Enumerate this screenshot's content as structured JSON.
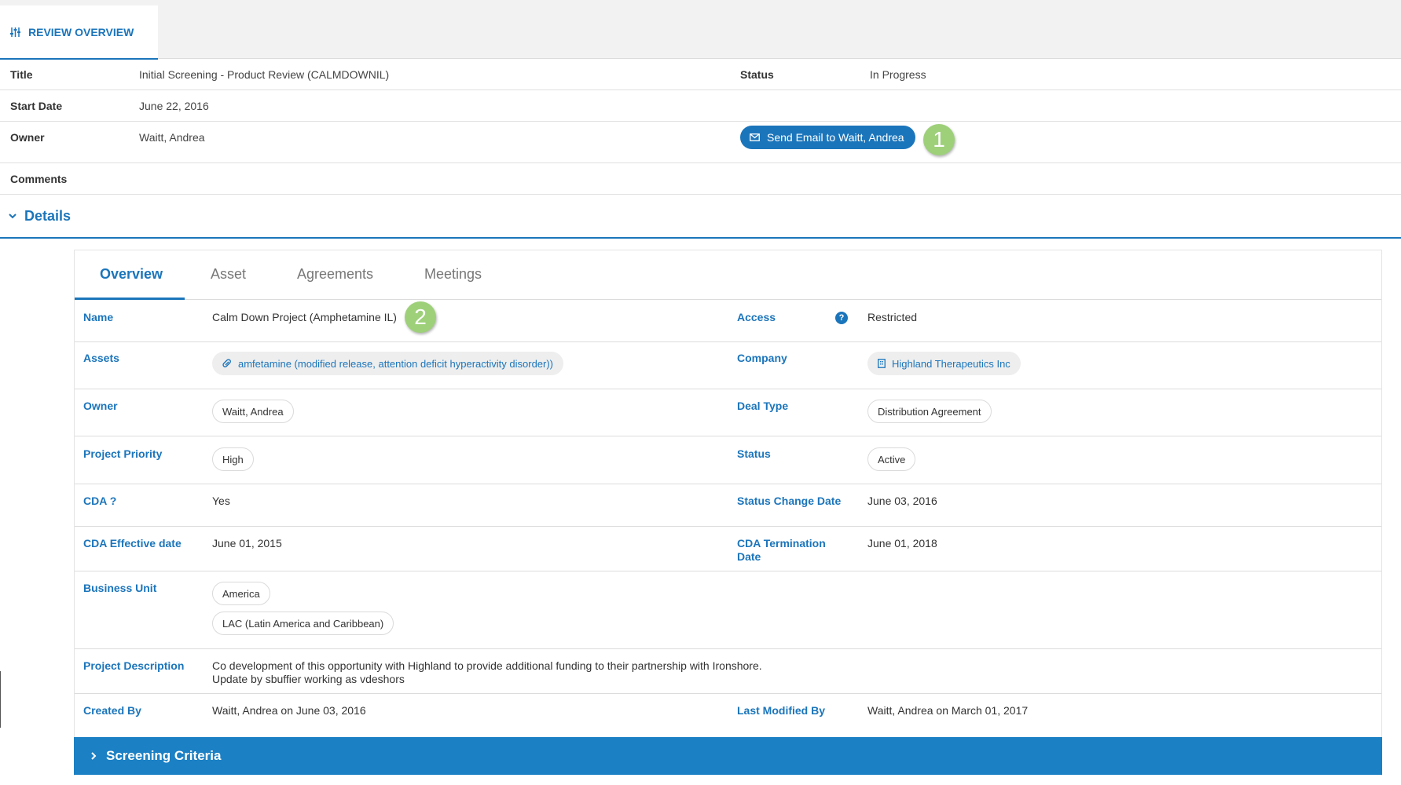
{
  "top_tab": {
    "label": "REVIEW OVERVIEW",
    "icon": "sliders-icon"
  },
  "review": {
    "title_label": "Title",
    "title_value": "Initial Screening - Product Review (CALMDOWNIL)",
    "status_label": "Status",
    "status_value": "In Progress",
    "start_label": "Start Date",
    "start_value": "June 22, 2016",
    "owner_label": "Owner",
    "owner_value": "Waitt, Andrea",
    "email_button": "Send Email to Waitt, Andrea",
    "comments_label": "Comments"
  },
  "markers": {
    "one": "1",
    "two": "2"
  },
  "details": {
    "label": "Details"
  },
  "tabs": {
    "overview": "Overview",
    "asset": "Asset",
    "agreements": "Agreements",
    "meetings": "Meetings"
  },
  "fields": {
    "name_label": "Name",
    "name_value": "Calm Down Project (Amphetamine IL)",
    "access_label": "Access",
    "access_value": "Restricted",
    "assets_label": "Assets",
    "assets_value": "amfetamine (modified release, attention deficit hyperactivity disorder))",
    "company_label": "Company",
    "company_value": "Highland Therapeutics Inc",
    "owner_label": "Owner",
    "owner_value": "Waitt, Andrea",
    "deal_type_label": "Deal Type",
    "deal_type_value": "Distribution Agreement",
    "priority_label": "Project Priority",
    "priority_value": "High",
    "status_label": "Status",
    "status_value": "Active",
    "cda_label": "CDA ?",
    "cda_value": "Yes",
    "status_change_label": "Status Change Date",
    "status_change_value": "June 03, 2016",
    "cda_effective_label": "CDA Effective date",
    "cda_effective_value": "June 01, 2015",
    "cda_termination_label": "CDA Termination Date",
    "cda_termination_value": "June 01, 2018",
    "business_unit_label": "Business Unit",
    "business_units": [
      "America",
      "LAC (Latin America and Caribbean)"
    ],
    "description_label": "Project Description",
    "description_line1": "Co development of this opportunity with Highland to provide additional funding to their partnership with Ironshore.",
    "description_line2": "Update by sbuffier working as vdeshors",
    "created_by_label": "Created By",
    "created_by_value": "Waitt, Andrea on June 03, 2016",
    "last_modified_label": "Last Modified By",
    "last_modified_value": "Waitt, Andrea on March 01, 2017"
  },
  "screening": {
    "label": "Screening Criteria"
  },
  "colors": {
    "accent": "#1b75bb",
    "restricted": "#d32f2f",
    "marker": "#9ed07a",
    "banner": "#1b80c4"
  }
}
